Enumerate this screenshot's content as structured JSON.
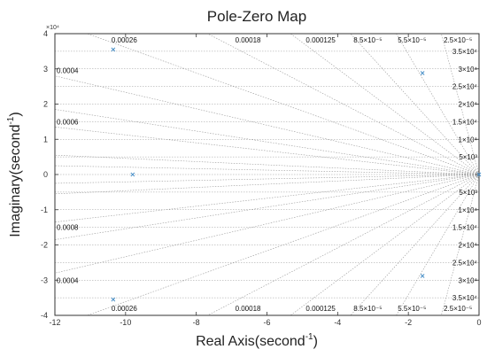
{
  "chart_data": {
    "type": "scatter",
    "title": "Pole-Zero Map",
    "xlabel": "Real Axis(second",
    "xlabel_exp": "-1",
    "xlabel_close": ")",
    "ylabel": "Imaginary(second",
    "ylabel_exp": "-1",
    "ylabel_close": ")",
    "xlim": [
      -12,
      0
    ],
    "ylim": [
      -4,
      4
    ],
    "y_scale_note": "×10⁴",
    "x_ticks": [
      "-12",
      "-10",
      "-8",
      "-6",
      "-4",
      "-2",
      "0"
    ],
    "x_tick_values": [
      -12,
      -10,
      -8,
      -6,
      -4,
      -2,
      0
    ],
    "y_ticks": [
      "4",
      "3",
      "2",
      "1",
      "0",
      "-1",
      "-2",
      "-3",
      "-4"
    ],
    "y_tick_values": [
      4,
      3,
      2,
      1,
      0,
      -1,
      -2,
      -3,
      -4
    ],
    "grid": true,
    "poles": [
      {
        "x": -10.35,
        "y": 3.55
      },
      {
        "x": -10.35,
        "y": -3.55
      },
      {
        "x": -9.8,
        "y": 0
      },
      {
        "x": -1.6,
        "y": 2.88
      },
      {
        "x": -1.6,
        "y": -2.88
      },
      {
        "x": 0,
        "y": 0
      }
    ],
    "damping_rays": [
      {
        "label": "0.00026",
        "y_at_xmin": 4.33,
        "label_x": -10.4,
        "label_y": 3.87
      },
      {
        "label": "0.00018",
        "y_at_xmin": 6.25,
        "label_x": -6.9,
        "label_y": 3.87
      },
      {
        "label": "0.000125",
        "y_at_xmin": 9.0,
        "label_x": -4.9,
        "label_y": 3.87
      },
      {
        "label": "8.5×10⁻⁵",
        "y_at_xmin": 13.2,
        "label_x": -3.55,
        "label_y": 3.87
      },
      {
        "label": "5.5×10⁻⁵",
        "y_at_xmin": 20.5,
        "label_x": -2.3,
        "label_y": 3.87
      },
      {
        "label": "2.5×10⁻⁵",
        "y_at_xmin": 45.0,
        "label_x": -1.0,
        "label_y": 3.87
      },
      {
        "label": "0.0004",
        "y_at_xmin": 2.8,
        "label_x": -11.65,
        "label_y": 2.95
      },
      {
        "label": "0.0006",
        "y_at_xmin": 1.85,
        "label_x": -11.65,
        "label_y": 1.5
      },
      {
        "label": "0.0008",
        "y_at_xmin": 1.35,
        "label_x": -11.75,
        "label_y": -3.0
      },
      {
        "label": "0.0008",
        "y_at_xmin": -1.35,
        "label_x": -11.75,
        "label_y": -2.98
      }
    ],
    "bottom_labels": [
      {
        "label": "0.00026",
        "x": -10.4
      },
      {
        "label": "0.00018",
        "x": -6.9
      },
      {
        "label": "0.000125",
        "x": -4.9
      },
      {
        "label": "8.5×10⁻⁵",
        "x": -3.55
      },
      {
        "label": "5.5×10⁻⁵",
        "x": -2.3
      },
      {
        "label": "2.5×10⁻⁵",
        "x": -1.0
      }
    ],
    "left_labels": [
      {
        "label": "0.0004",
        "y": 2.95
      },
      {
        "label": "0.0006",
        "y": 1.5
      },
      {
        "label": "0.0008",
        "y": -1.5
      },
      {
        "label": "0.0004",
        "y": -3.0
      }
    ],
    "freq_labels": [
      {
        "label": "3.5×10⁴",
        "y": 3.5
      },
      {
        "label": "3×10⁴",
        "y": 3.0
      },
      {
        "label": "2.5×10⁴",
        "y": 2.5
      },
      {
        "label": "2×10⁴",
        "y": 2.0
      },
      {
        "label": "1.5×10⁴",
        "y": 1.5
      },
      {
        "label": "1×10⁴",
        "y": 1.0
      },
      {
        "label": "5×10³",
        "y": 0.5
      },
      {
        "label": "5×10³",
        "y": -0.5
      },
      {
        "label": "1×10⁴",
        "y": -1.0
      },
      {
        "label": "1.5×10⁴",
        "y": -1.5
      },
      {
        "label": "2×10⁴",
        "y": -2.0
      },
      {
        "label": "2.5×10⁴",
        "y": -2.5
      },
      {
        "label": "3×10⁴",
        "y": -3.0
      },
      {
        "label": "3.5×10⁴",
        "y": -3.5
      }
    ],
    "colors": {
      "pole": "#4a90c8",
      "grid": "#9a9a9a",
      "axis": "#333333",
      "background": "#ffffff"
    }
  }
}
